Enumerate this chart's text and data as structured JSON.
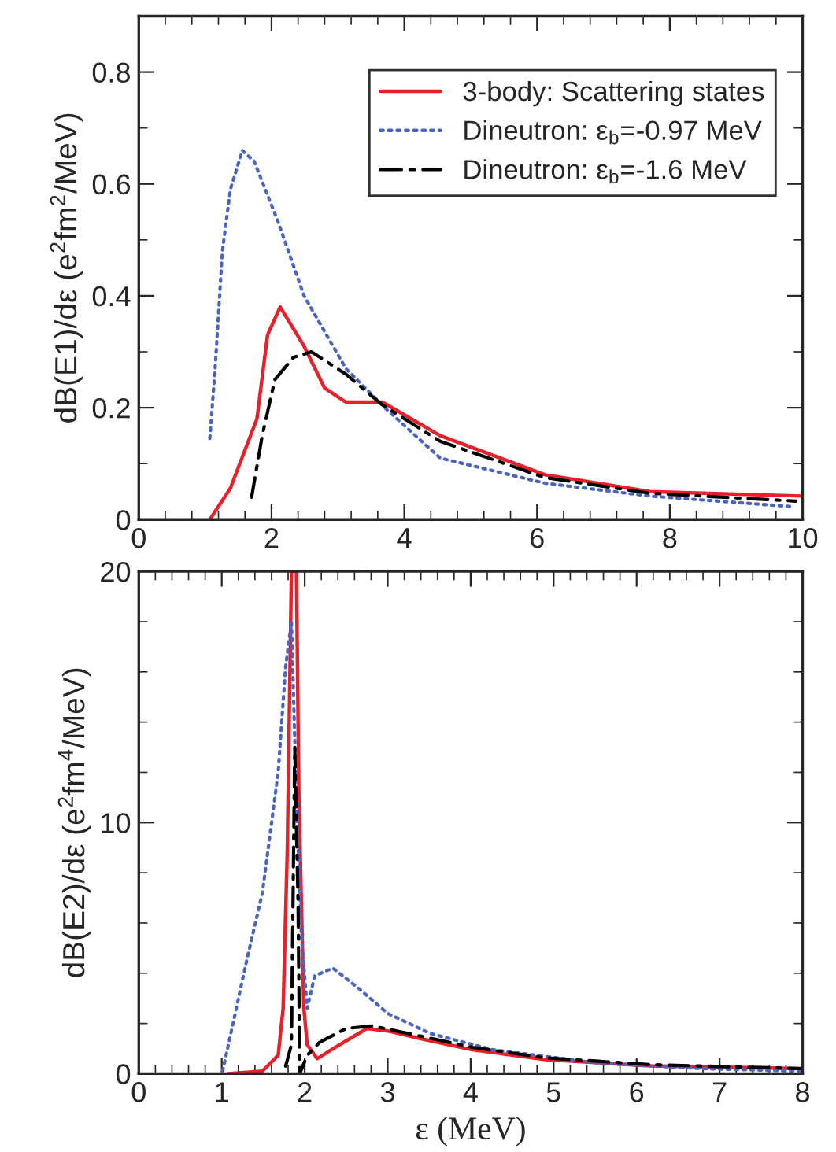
{
  "chart_data": [
    {
      "type": "line",
      "ylabel": "dB(E1)/dε (e$^{2}$fm$^{2}$/MeV)",
      "xlim": [
        0,
        10
      ],
      "xticks": [
        0,
        2,
        4,
        6,
        8,
        10
      ],
      "ylim": [
        0,
        0.9
      ],
      "yticks": [
        0,
        0.2,
        0.4,
        0.6,
        0.8
      ],
      "grid": false,
      "legend": "top right",
      "marker": "none",
      "series": [
        {
          "name": "3-body: Scattering states",
          "color": "#e8202a",
          "line_style": "solid",
          "x": [
            1.07,
            1.38,
            1.78,
            1.94,
            2.13,
            2.49,
            2.8,
            3.12,
            3.67,
            4.54,
            6.12,
            7.7,
            10
          ],
          "values": [
            0,
            0.056,
            0.18,
            0.33,
            0.38,
            0.31,
            0.235,
            0.21,
            0.21,
            0.15,
            0.08,
            0.05,
            0.042
          ]
        },
        {
          "name": "Dineutron: ε$_{b}$=-0.97 MeV",
          "color": "#4a64c0",
          "line_style": "dotted",
          "x": [
            1.07,
            1.15,
            1.26,
            1.38,
            1.56,
            1.74,
            2.09,
            2.49,
            3.12,
            3.75,
            4.54,
            6.12,
            7.7,
            9.85
          ],
          "values": [
            0.145,
            0.27,
            0.48,
            0.59,
            0.66,
            0.64,
            0.535,
            0.4,
            0.27,
            0.195,
            0.11,
            0.065,
            0.042,
            0.023
          ]
        },
        {
          "name": "Dineutron: ε$_{b}$=-1.6 MeV",
          "color": "#000000",
          "line_style": "dashdot",
          "x": [
            1.7,
            1.86,
            2.05,
            2.33,
            2.6,
            3.12,
            3.67,
            4.54,
            6.12,
            7.7,
            9.9
          ],
          "values": [
            0.04,
            0.15,
            0.25,
            0.29,
            0.3,
            0.26,
            0.205,
            0.14,
            0.075,
            0.047,
            0.033
          ]
        }
      ]
    },
    {
      "type": "line",
      "xlabel": "ε (MeV)",
      "ylabel": "dB(E2)/dε (e$^{2}$fm$^{4}$/MeV)",
      "xlim": [
        0,
        8
      ],
      "xticks": [
        0,
        1,
        2,
        3,
        4,
        5,
        6,
        7,
        8
      ],
      "ylim": [
        0,
        20
      ],
      "yticks": [
        0,
        10,
        20
      ],
      "grid": false,
      "legend": false,
      "marker": "none",
      "series": [
        {
          "color": "#e8202a",
          "line_style": "solid",
          "x": [
            1.08,
            1.49,
            1.68,
            1.74,
            1.79,
            1.84,
            1.9,
            1.93,
            1.99,
            2.03,
            2.15,
            2.37,
            2.75,
            3.0,
            3.39,
            4.02,
            4.9,
            6.17,
            8
          ],
          "values": [
            0,
            0.1,
            0.73,
            2.6,
            8.9,
            20,
            20,
            11,
            2.6,
            1.15,
            0.6,
            1.05,
            1.8,
            1.7,
            1.4,
            0.95,
            0.56,
            0.31,
            0.2
          ]
        },
        {
          "color": "#4a64c0",
          "line_style": "dotted",
          "x": [
            1.01,
            1.11,
            1.3,
            1.49,
            1.68,
            1.77,
            1.84,
            1.9,
            1.96,
            2.03,
            2.12,
            2.34,
            2.63,
            3.0,
            3.51,
            4.27,
            5.54,
            6.8,
            8
          ],
          "values": [
            0.1,
            1.6,
            4.5,
            7.2,
            12,
            16.2,
            18,
            11,
            5.5,
            2.6,
            3.9,
            4.2,
            3.45,
            2.4,
            1.6,
            0.95,
            0.42,
            0.2,
            0.1
          ]
        },
        {
          "color": "#000000",
          "line_style": "dashdot",
          "x": [
            1.77,
            1.84,
            1.88,
            1.92,
            1.94,
            2.03,
            2.18,
            2.5,
            2.82,
            3.32,
            4.02,
            4.9,
            6.17,
            8
          ],
          "values": [
            0.3,
            1.15,
            13,
            6.8,
            0,
            0.73,
            1.25,
            1.8,
            1.9,
            1.55,
            1.05,
            0.63,
            0.36,
            0.2
          ]
        }
      ]
    }
  ]
}
